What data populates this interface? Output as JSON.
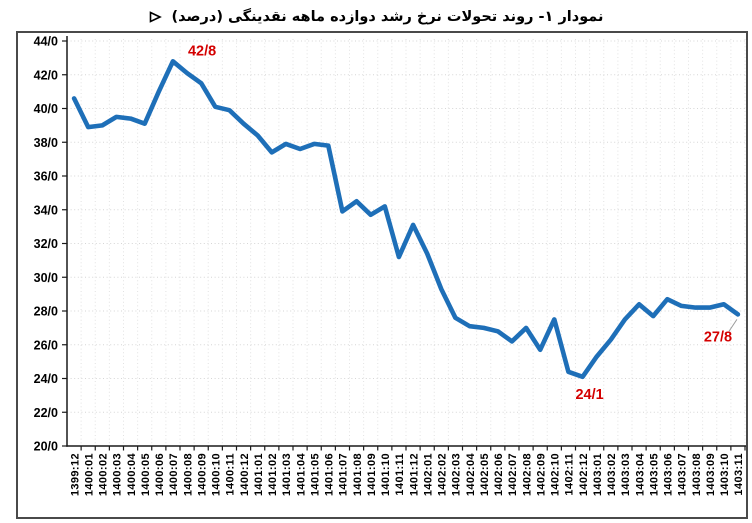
{
  "title": {
    "text": "نمودار ۱- روند تحولات نرخ رشد دوازده ماهه نقدینگی (درصد)"
  },
  "colors": {
    "line": "#1e6fb8",
    "annotation": "#d40000",
    "h_grid": "#d6d6d6",
    "v_grid": "#e2e2e2",
    "axis": "#1a1a1a",
    "tick_text": "#000000",
    "leader": "#9a9a9a",
    "frame": "#4a4a4a"
  },
  "chart_data": {
    "type": "line",
    "title": "نمودار ۱- روند تحولات نرخ رشد دوازده ماهه نقدینگی (درصد)",
    "xlabel": "",
    "ylabel": "",
    "ylim": [
      20,
      44
    ],
    "ytick_step": 2,
    "ytick_labels": [
      "20/0",
      "22/0",
      "24/0",
      "26/0",
      "28/0",
      "30/0",
      "32/0",
      "34/0",
      "36/0",
      "38/0",
      "40/0",
      "42/0",
      "44/0"
    ],
    "grid": "both-dotted",
    "legend": "none",
    "categories": [
      "1399:12",
      "1400:01",
      "1400:02",
      "1400:03",
      "1400:04",
      "1400:05",
      "1400:06",
      "1400:07",
      "1400:08",
      "1400:09",
      "1400:10",
      "1400:11",
      "1400:12",
      "1401:01",
      "1401:02",
      "1401:03",
      "1401:04",
      "1401:05",
      "1401:06",
      "1401:07",
      "1401:08",
      "1401:09",
      "1401:10",
      "1401:11",
      "1401:12",
      "1402:01",
      "1402:02",
      "1402:03",
      "1402:04",
      "1402:05",
      "1402:06",
      "1402:07",
      "1402:08",
      "1402:09",
      "1402:10",
      "1402:11",
      "1402:12",
      "1403:01",
      "1403:02",
      "1403:03",
      "1403:04",
      "1403:05",
      "1403:06",
      "1403:07",
      "1403:08",
      "1403:09",
      "1403:10",
      "1403:11"
    ],
    "values": [
      40.6,
      38.9,
      39.0,
      39.5,
      39.4,
      39.1,
      41.0,
      42.8,
      42.1,
      41.5,
      40.1,
      39.9,
      39.1,
      38.4,
      37.4,
      37.9,
      37.6,
      37.9,
      37.8,
      33.9,
      34.5,
      33.7,
      34.2,
      31.2,
      33.1,
      31.4,
      29.3,
      27.6,
      27.1,
      27.0,
      26.8,
      26.2,
      27.0,
      25.7,
      27.5,
      24.4,
      24.1,
      25.3,
      26.3,
      27.5,
      28.4,
      27.7,
      28.7,
      28.3,
      28.2,
      28.2,
      28.4,
      27.8
    ],
    "annotations": [
      {
        "text": "42/8",
        "index": 7,
        "position": "right-of-peak"
      },
      {
        "text": "24/1",
        "index": 36,
        "position": "below"
      },
      {
        "text": "27/8",
        "index": 47,
        "position": "below-left-leader"
      }
    ]
  }
}
